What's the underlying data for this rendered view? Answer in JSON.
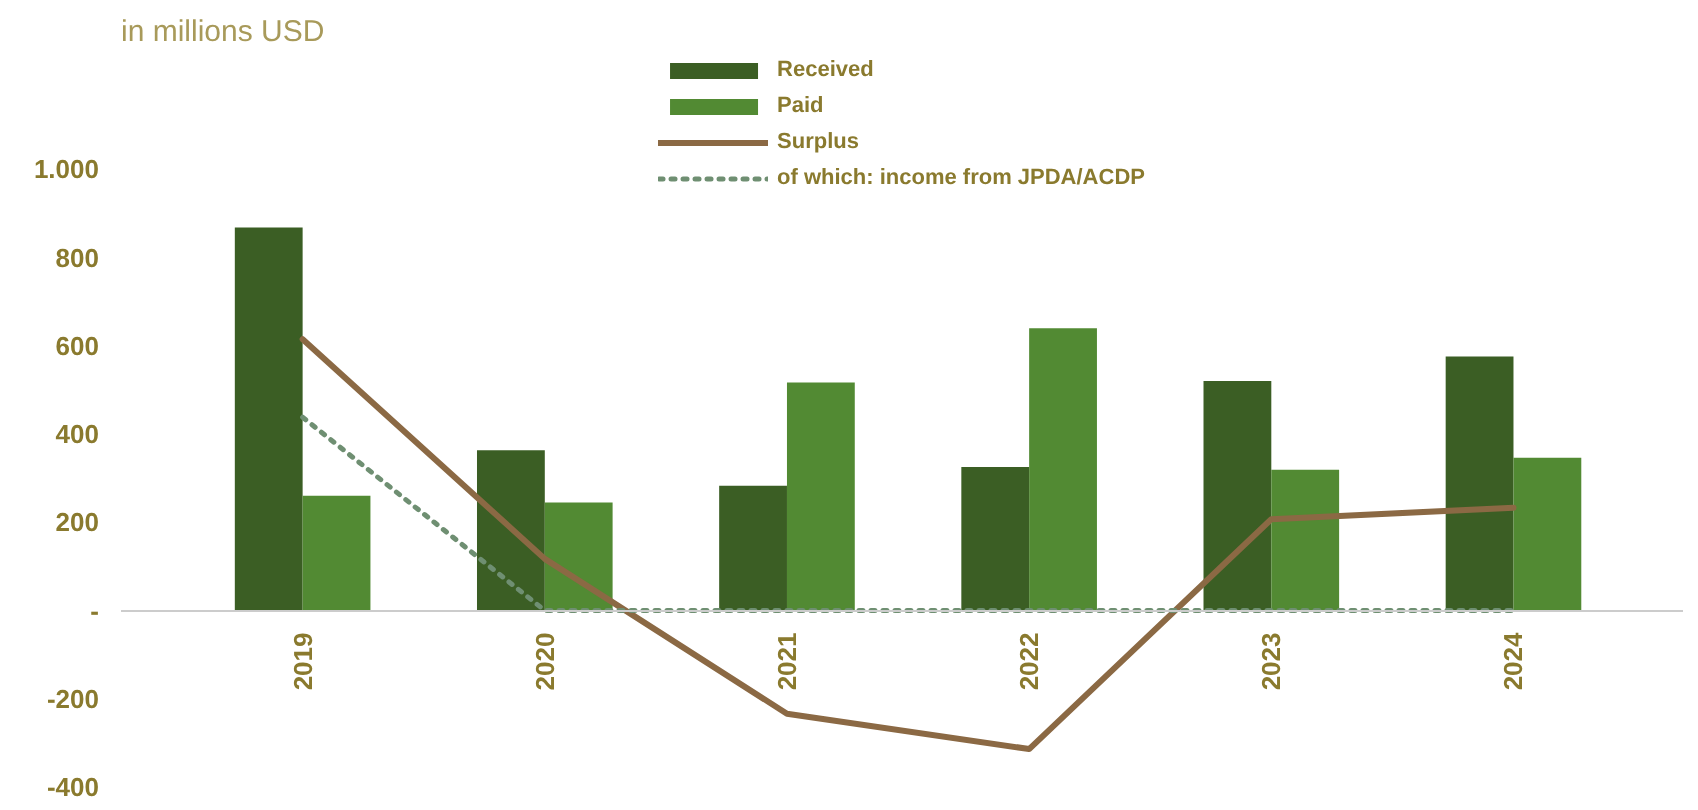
{
  "chart_data": {
    "type": "bar",
    "title": "in millions USD",
    "categories": [
      "2019",
      "2020",
      "2021",
      "2022",
      "2023",
      "2024"
    ],
    "series": [
      {
        "name": "Received",
        "color": "#3b5e24",
        "values": [
          868,
          363,
          283,
          325,
          520,
          576
        ]
      },
      {
        "name": "Paid",
        "color": "#528a33",
        "values": [
          260,
          245,
          517,
          640,
          319,
          346
        ]
      },
      {
        "name": "Surplus",
        "type": "line",
        "color": "#8b6944",
        "line_style": "solid",
        "values": [
          615,
          117,
          -234,
          -314,
          207,
          233
        ]
      },
      {
        "name": "of which: income from JPDA/ACDP",
        "type": "line",
        "color": "#6f8f72",
        "line_style": "dotted",
        "values": [
          438,
          0,
          0,
          0,
          0,
          0
        ]
      }
    ],
    "ylim": [
      -400,
      1250
    ],
    "yticks": [
      {
        "value": -400,
        "label": "-400"
      },
      {
        "value": -200,
        "label": "-200"
      },
      {
        "value": 0,
        "label": "-"
      },
      200,
      400,
      600,
      800,
      {
        "value": 1000,
        "label": "1.000"
      }
    ],
    "grid": false,
    "legend": "top"
  }
}
